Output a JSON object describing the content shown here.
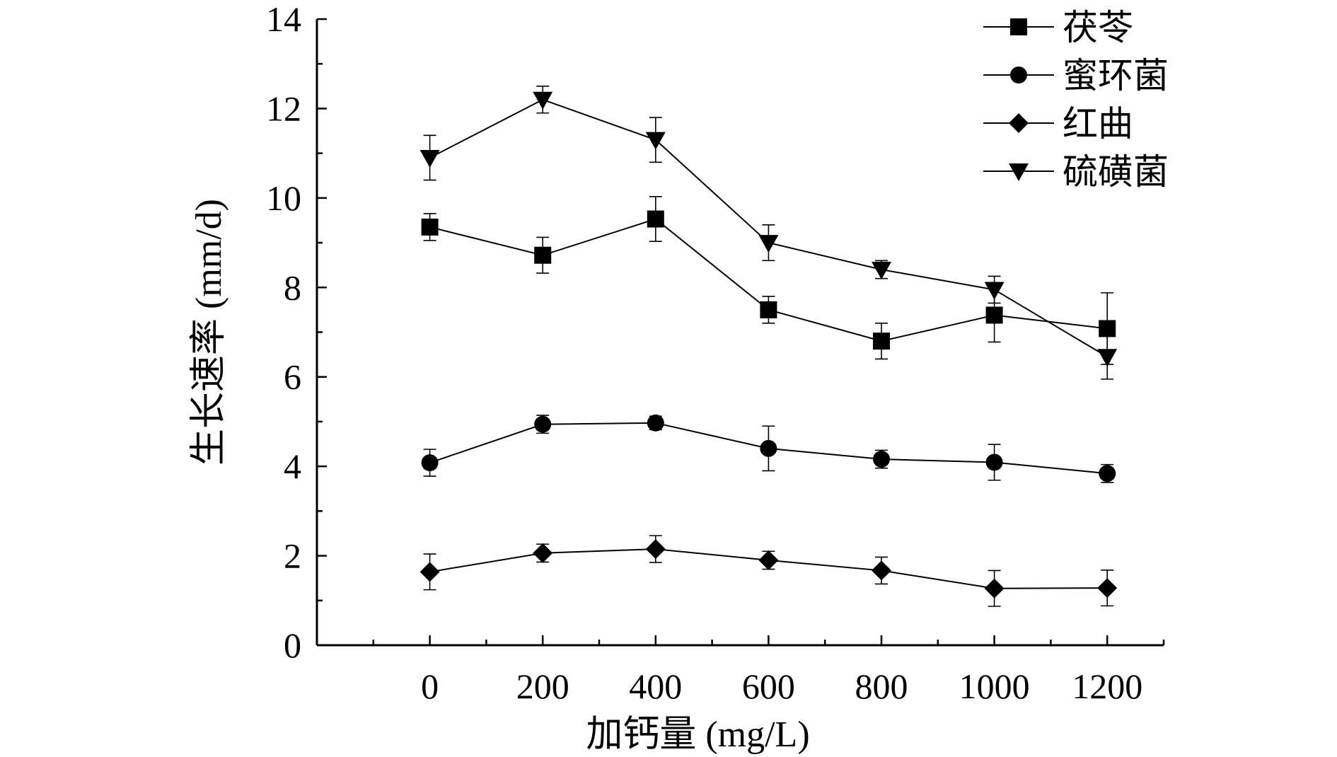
{
  "chart_data": {
    "type": "line",
    "xlabel": "加钙量 (mg/L)",
    "ylabel": "生长速率 (mm/d)",
    "ylim": [
      0,
      14
    ],
    "xlim": [
      -200,
      1300
    ],
    "x": [
      0,
      200,
      400,
      600,
      800,
      1000,
      1200
    ],
    "x_ticks": [
      "0",
      "200",
      "400",
      "600",
      "800",
      "1000",
      "1200"
    ],
    "y_ticks": [
      "0",
      "2",
      "4",
      "6",
      "8",
      "10",
      "12",
      "14"
    ],
    "legend_position": "top-right",
    "grid": false,
    "series": [
      {
        "name": "茯苓",
        "marker": "square",
        "values": [
          9.35,
          8.72,
          9.53,
          7.5,
          6.8,
          7.38,
          7.08
        ],
        "errors": [
          0.3,
          0.4,
          0.5,
          0.3,
          0.4,
          0.6,
          0.8
        ]
      },
      {
        "name": "蜜环菌",
        "marker": "circle",
        "values": [
          4.08,
          4.94,
          4.97,
          4.4,
          4.16,
          4.09,
          3.84
        ],
        "errors": [
          0.3,
          0.2,
          0.15,
          0.5,
          0.2,
          0.4,
          0.2
        ]
      },
      {
        "name": "红曲",
        "marker": "diamond",
        "values": [
          1.64,
          2.06,
          2.15,
          1.9,
          1.67,
          1.27,
          1.28
        ],
        "errors": [
          0.4,
          0.2,
          0.3,
          0.2,
          0.3,
          0.4,
          0.4
        ]
      },
      {
        "name": "硫磺菌",
        "marker": "triangle-down",
        "values": [
          10.9,
          12.2,
          11.3,
          9.0,
          8.4,
          7.95,
          6.45
        ],
        "errors": [
          0.5,
          0.3,
          0.5,
          0.4,
          0.2,
          0.3,
          0.5
        ]
      }
    ]
  }
}
